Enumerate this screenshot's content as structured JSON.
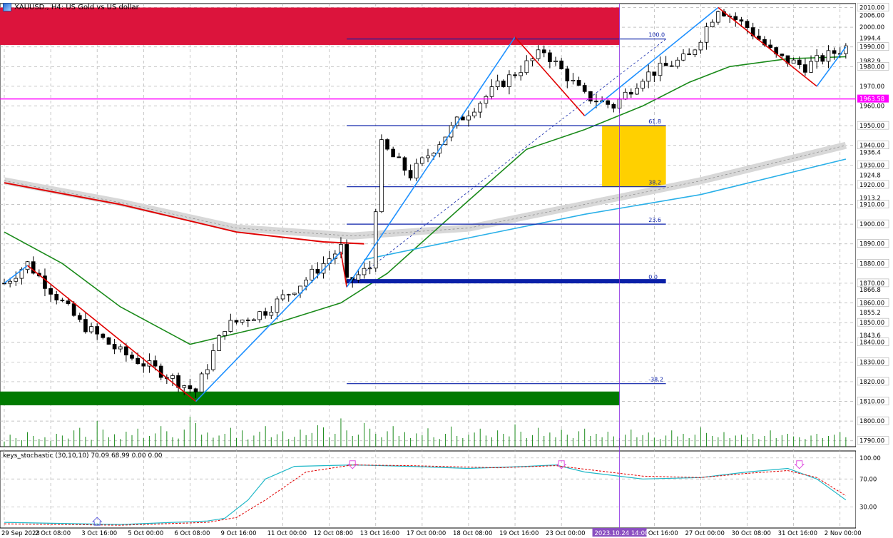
{
  "window": {
    "title": "XAUUSD., H4: US Gold vs US dollar",
    "indicator_label": "keys_stochastic (30,10,10) 70.09 68.99 0.00 0.00",
    "crosshair_time_label": "2023.10.24 14:00"
  },
  "colors": {
    "bull": "#000000",
    "bear": "#000000",
    "ma_red": "#e00000",
    "ma_green": "#1a8a1a",
    "ma_lightblue": "#2ab0e8",
    "zigzag_red": "#e00000",
    "zigzag_blue": "#1e90ff",
    "fib": "#0a1fa8",
    "zone_red": "#dc143c",
    "zone_green": "#007a00",
    "zone_gold": "#ffd000",
    "magenta": "#ff00ff",
    "stoch_main": "#20b8c8",
    "stoch_signal": "#e00000"
  },
  "chart_data": {
    "type": "candlestick",
    "symbol": "XAUUSD.",
    "timeframe": "H4",
    "ylim": [
      1787,
      2012
    ],
    "y_ticks": [
      2010.0,
      2006.0,
      2000.0,
      1994.4,
      1990.0,
      1982.9,
      1980.0,
      1970.0,
      1963.58,
      1960.0,
      1950.0,
      1940.0,
      1936.4,
      1930.0,
      1924.8,
      1920.0,
      1913.2,
      1910.0,
      1900.0,
      1890.0,
      1880.0,
      1870.0,
      1866.8,
      1860.0,
      1855.2,
      1850.0,
      1843.6,
      1840.0,
      1830.0,
      1820.0,
      1810.0,
      1800.0,
      1790.0
    ],
    "highlight_labels": [
      "2010.00",
      "1990.00",
      "1980.00",
      "1963.58",
      "1950.00",
      "1940.00",
      "1930.00",
      "1920.00",
      "1910.00",
      "1900.00",
      "1890.00",
      "1880.00",
      "1870.00",
      "1860.00",
      "1850.00",
      "1840.00",
      "1830.00",
      "1820.00",
      "1810.00",
      "1800.00",
      "1790.00"
    ],
    "x_ticks": [
      "29 Sep 2023",
      "2 Oct 08:00",
      "3 Oct 16:00",
      "5 Oct 00:00",
      "6 Oct 08:00",
      "9 Oct 16:00",
      "11 Oct 00:00",
      "12 Oct 08:00",
      "13 Oct 16:00",
      "17 Oct 00:00",
      "18 Oct 08:00",
      "19 Oct 16:00",
      "23 Oct 00:00",
      "25 Oct 16:00",
      "27 Oct 00:00",
      "30 Oct 08:00",
      "31 Oct 16:00",
      "2 Nov 00:00"
    ],
    "x_tick_index": [
      0,
      8,
      16,
      24,
      32,
      40,
      48,
      56,
      64,
      72,
      80,
      88,
      96,
      112,
      120,
      128,
      136,
      144
    ],
    "anchors": [
      [
        0,
        1870
      ],
      [
        4,
        1880
      ],
      [
        13,
        1850
      ],
      [
        20,
        1835
      ],
      [
        27,
        1825
      ],
      [
        33,
        1815
      ],
      [
        38,
        1848
      ],
      [
        45,
        1856
      ],
      [
        52,
        1872
      ],
      [
        58,
        1888
      ],
      [
        59,
        1870
      ],
      [
        63,
        1878
      ],
      [
        65,
        1940
      ],
      [
        70,
        1925
      ],
      [
        78,
        1952
      ],
      [
        85,
        1970
      ],
      [
        93,
        1988
      ],
      [
        100,
        1965
      ],
      [
        105,
        1960
      ],
      [
        110,
        1975
      ],
      [
        118,
        1985
      ],
      [
        123,
        2010
      ],
      [
        128,
        2000
      ],
      [
        133,
        1985
      ],
      [
        138,
        1980
      ],
      [
        145,
        1990
      ]
    ],
    "candle_count": 146,
    "fibonacci": [
      {
        "level": "100.0",
        "price": 1994
      },
      {
        "level": "61.8",
        "price": 1950
      },
      {
        "level": "38.2",
        "price": 1919
      },
      {
        "level": "23.6",
        "price": 1900
      },
      {
        "level": "0.0",
        "price": 1871
      },
      {
        "level": "-38.2",
        "price": 1819
      }
    ],
    "horizontal_lines": [
      {
        "name": "magenta-level",
        "price": 1963.58,
        "label": "1963.58"
      }
    ],
    "zones": [
      {
        "name": "resistance-zone",
        "from": 1991,
        "to": 2010
      },
      {
        "name": "support-zone",
        "from": 1808,
        "to": 1815
      },
      {
        "name": "fib-zone",
        "from": 1919,
        "to": 1950
      }
    ],
    "zigzag": [
      [
        0,
        1870
      ],
      [
        4,
        1879
      ],
      [
        33,
        1810
      ],
      [
        58,
        1886
      ],
      [
        59,
        1868
      ],
      [
        88,
        1995
      ],
      [
        100,
        1955
      ],
      [
        123,
        2010
      ],
      [
        140,
        1970
      ],
      [
        145,
        1990
      ]
    ],
    "ma_red": [
      [
        0,
        1921
      ],
      [
        20,
        1910
      ],
      [
        40,
        1896
      ],
      [
        55,
        1891
      ],
      [
        62,
        1890
      ]
    ],
    "ma_green": [
      [
        0,
        1896
      ],
      [
        10,
        1880
      ],
      [
        20,
        1858
      ],
      [
        32,
        1839
      ],
      [
        45,
        1848
      ],
      [
        58,
        1860
      ],
      [
        66,
        1875
      ],
      [
        80,
        1912
      ],
      [
        90,
        1938
      ],
      [
        100,
        1948
      ],
      [
        110,
        1960
      ],
      [
        118,
        1972
      ],
      [
        125,
        1980
      ],
      [
        135,
        1984
      ],
      [
        145,
        1985
      ]
    ],
    "ma_lightblue": [
      [
        62,
        1882
      ],
      [
        80,
        1893
      ],
      [
        100,
        1905
      ],
      [
        120,
        1915
      ],
      [
        145,
        1933
      ]
    ],
    "volume_bars": [
      12,
      28,
      20,
      15,
      34,
      25,
      18,
      22,
      14,
      30,
      26,
      19,
      38,
      44,
      23,
      16,
      60,
      40,
      22,
      29,
      18,
      35,
      27,
      42,
      20,
      25,
      31,
      48,
      36,
      22,
      19,
      40,
      70,
      55,
      28,
      33,
      21,
      26,
      30,
      44,
      20,
      38,
      17,
      26,
      35,
      48,
      22,
      29,
      36,
      18,
      23,
      40,
      27,
      32,
      50,
      45,
      22,
      30,
      66,
      38,
      25,
      28,
      55,
      42,
      30,
      22,
      36,
      48,
      25,
      34,
      20,
      31,
      27,
      43,
      22,
      18,
      30,
      47,
      25,
      20,
      28,
      33,
      42,
      26,
      22,
      38,
      30,
      24,
      52,
      35,
      20,
      27,
      44,
      25,
      33,
      22,
      40,
      28,
      20,
      36,
      42,
      25,
      30,
      22,
      35,
      24,
      20,
      28,
      40,
      22,
      27,
      33,
      21,
      18,
      26,
      38,
      24,
      30,
      20,
      28,
      45,
      32,
      25,
      22,
      34,
      20,
      26,
      28,
      22,
      30,
      18,
      25,
      38,
      20,
      27,
      30,
      24,
      22,
      18,
      26,
      30,
      20,
      25,
      28,
      34,
      22
    ],
    "stochastic": {
      "label": "keys_stochastic (30,10,10)",
      "ylim": [
        0,
        110
      ],
      "ticks": [
        100.0,
        70.0,
        30.0
      ],
      "main": [
        [
          0,
          8
        ],
        [
          20,
          5
        ],
        [
          35,
          10
        ],
        [
          38,
          14
        ],
        [
          42,
          40
        ],
        [
          45,
          70
        ],
        [
          50,
          88
        ],
        [
          60,
          90
        ],
        [
          70,
          88
        ],
        [
          80,
          85
        ],
        [
          90,
          88
        ],
        [
          95,
          90
        ],
        [
          100,
          80
        ],
        [
          110,
          70
        ],
        [
          120,
          72
        ],
        [
          128,
          80
        ],
        [
          135,
          85
        ],
        [
          140,
          70
        ],
        [
          145,
          40
        ]
      ],
      "signal": [
        [
          0,
          6
        ],
        [
          20,
          4
        ],
        [
          35,
          8
        ],
        [
          40,
          15
        ],
        [
          45,
          40
        ],
        [
          52,
          80
        ],
        [
          60,
          90
        ],
        [
          70,
          89
        ],
        [
          85,
          86
        ],
        [
          95,
          89
        ],
        [
          100,
          84
        ],
        [
          110,
          74
        ],
        [
          120,
          72
        ],
        [
          128,
          78
        ],
        [
          135,
          82
        ],
        [
          140,
          72
        ],
        [
          145,
          46
        ]
      ],
      "sell_arrows_index": [
        60,
        96,
        137
      ],
      "buy_arrows_index": [
        16
      ]
    },
    "crosshair_index": 106
  }
}
